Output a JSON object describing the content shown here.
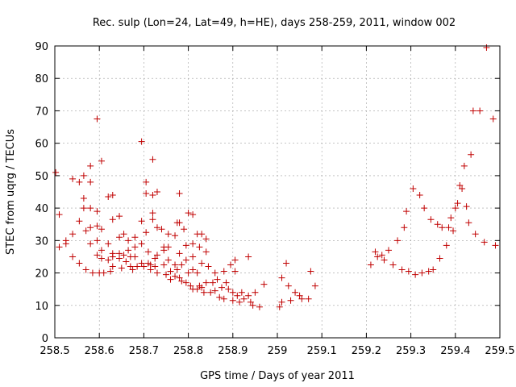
{
  "chart_data": {
    "type": "scatter",
    "title": "Rec. sulp (Lon=24, Lat=49, h=HE), days 258-259, 2011, window 002",
    "xlabel": "GPS time / Days of year 2011",
    "ylabel": "STEC from uqrg / TECUs",
    "xlim": [
      258.5,
      259.5
    ],
    "ylim": [
      0,
      90
    ],
    "xticks": [
      258.5,
      258.6,
      258.7,
      258.8,
      258.9,
      259,
      259.1,
      259.2,
      259.3,
      259.4,
      259.5
    ],
    "xtick_labels": [
      "258.5",
      "258.6",
      "258.7",
      "258.8",
      "258.9",
      "259",
      "259.1",
      "259.2",
      "259.3",
      "259.4",
      "259.5"
    ],
    "yticks": [
      0,
      10,
      20,
      30,
      40,
      50,
      60,
      70,
      80,
      90
    ],
    "ytick_labels": [
      "0",
      "10",
      "20",
      "30",
      "40",
      "50",
      "60",
      "70",
      "80",
      "90"
    ],
    "grid": true,
    "marker": "plus",
    "color": "#c00000",
    "points": [
      [
        258.502,
        51
      ],
      [
        258.51,
        38
      ],
      [
        258.51,
        28
      ],
      [
        258.525,
        30
      ],
      [
        258.525,
        29
      ],
      [
        258.54,
        49
      ],
      [
        258.54,
        32
      ],
      [
        258.54,
        25
      ],
      [
        258.555,
        48
      ],
      [
        258.555,
        36
      ],
      [
        258.555,
        23
      ],
      [
        258.565,
        50
      ],
      [
        258.565,
        43
      ],
      [
        258.565,
        40
      ],
      [
        258.57,
        33
      ],
      [
        258.57,
        21
      ],
      [
        258.58,
        53
      ],
      [
        258.58,
        48
      ],
      [
        258.58,
        40
      ],
      [
        258.58,
        34
      ],
      [
        258.58,
        29
      ],
      [
        258.585,
        20
      ],
      [
        258.595,
        67.5
      ],
      [
        258.595,
        39
      ],
      [
        258.595,
        34.5
      ],
      [
        258.595,
        30
      ],
      [
        258.595,
        25.5
      ],
      [
        258.6,
        20
      ],
      [
        258.605,
        54.5
      ],
      [
        258.605,
        33.5
      ],
      [
        258.605,
        27
      ],
      [
        258.605,
        24.5
      ],
      [
        258.61,
        20
      ],
      [
        258.62,
        43.5
      ],
      [
        258.62,
        29
      ],
      [
        258.62,
        24
      ],
      [
        258.625,
        20.5
      ],
      [
        258.63,
        44
      ],
      [
        258.63,
        36.5
      ],
      [
        258.63,
        26
      ],
      [
        258.63,
        25
      ],
      [
        258.63,
        22
      ],
      [
        258.645,
        37.5
      ],
      [
        258.645,
        31
      ],
      [
        258.645,
        26
      ],
      [
        258.645,
        24.5
      ],
      [
        258.65,
        21.5
      ],
      [
        258.655,
        32
      ],
      [
        258.655,
        25.5
      ],
      [
        258.66,
        23.5
      ],
      [
        258.665,
        30
      ],
      [
        258.665,
        27
      ],
      [
        258.67,
        25
      ],
      [
        258.67,
        22
      ],
      [
        258.675,
        21
      ],
      [
        258.68,
        31
      ],
      [
        258.68,
        28
      ],
      [
        258.68,
        25
      ],
      [
        258.685,
        22
      ],
      [
        258.695,
        60.5
      ],
      [
        258.695,
        36
      ],
      [
        258.695,
        29
      ],
      [
        258.695,
        23
      ],
      [
        258.7,
        22
      ],
      [
        258.705,
        48
      ],
      [
        258.705,
        44.5
      ],
      [
        258.705,
        32.5
      ],
      [
        258.71,
        26.5
      ],
      [
        258.71,
        23
      ],
      [
        258.715,
        22.5
      ],
      [
        258.715,
        21
      ],
      [
        258.72,
        55
      ],
      [
        258.72,
        44
      ],
      [
        258.72,
        38.5
      ],
      [
        258.72,
        36.5
      ],
      [
        258.725,
        24.5
      ],
      [
        258.725,
        22
      ],
      [
        258.73,
        45
      ],
      [
        258.73,
        34
      ],
      [
        258.73,
        25.5
      ],
      [
        258.73,
        20
      ],
      [
        258.74,
        33.5
      ],
      [
        258.745,
        28
      ],
      [
        258.745,
        27
      ],
      [
        258.745,
        22.5
      ],
      [
        258.75,
        19.5
      ],
      [
        258.755,
        32
      ],
      [
        258.755,
        28
      ],
      [
        258.755,
        24
      ],
      [
        258.76,
        20.5
      ],
      [
        258.76,
        18
      ],
      [
        258.77,
        31.5
      ],
      [
        258.77,
        22.5
      ],
      [
        258.77,
        19
      ],
      [
        258.775,
        35.5
      ],
      [
        258.775,
        21
      ],
      [
        258.78,
        44.5
      ],
      [
        258.78,
        35.5
      ],
      [
        258.78,
        26
      ],
      [
        258.78,
        18.5
      ],
      [
        258.785,
        22.5
      ],
      [
        258.785,
        17.5
      ],
      [
        258.79,
        33.5
      ],
      [
        258.795,
        28.5
      ],
      [
        258.795,
        24
      ],
      [
        258.795,
        17
      ],
      [
        258.8,
        38.5
      ],
      [
        258.8,
        20
      ],
      [
        258.805,
        16
      ],
      [
        258.81,
        38
      ],
      [
        258.81,
        29
      ],
      [
        258.81,
        25
      ],
      [
        258.81,
        21
      ],
      [
        258.81,
        15
      ],
      [
        258.82,
        32
      ],
      [
        258.82,
        20
      ],
      [
        258.82,
        15
      ],
      [
        258.825,
        28
      ],
      [
        258.825,
        16
      ],
      [
        258.83,
        32
      ],
      [
        258.83,
        23
      ],
      [
        258.83,
        15.5
      ],
      [
        258.835,
        14
      ],
      [
        258.84,
        30.5
      ],
      [
        258.84,
        26.5
      ],
      [
        258.84,
        17
      ],
      [
        258.845,
        22
      ],
      [
        258.85,
        14
      ],
      [
        258.855,
        17
      ],
      [
        258.86,
        20
      ],
      [
        258.86,
        14.5
      ],
      [
        258.865,
        18
      ],
      [
        258.87,
        12.5
      ],
      [
        258.875,
        15.5
      ],
      [
        258.88,
        20.5
      ],
      [
        258.88,
        12
      ],
      [
        258.885,
        17
      ],
      [
        258.89,
        15
      ],
      [
        258.895,
        22.5
      ],
      [
        258.9,
        11.5
      ],
      [
        258.9,
        14
      ],
      [
        258.905,
        24
      ],
      [
        258.905,
        20.5
      ],
      [
        258.91,
        13
      ],
      [
        258.915,
        11
      ],
      [
        258.92,
        14
      ],
      [
        258.925,
        12
      ],
      [
        258.935,
        25
      ],
      [
        258.935,
        13
      ],
      [
        258.94,
        11
      ],
      [
        258.945,
        10
      ],
      [
        258.95,
        14
      ],
      [
        258.96,
        9.5
      ],
      [
        258.97,
        16.5
      ],
      [
        259.005,
        9.5
      ],
      [
        259.01,
        18.5
      ],
      [
        259.01,
        11
      ],
      [
        259.02,
        23
      ],
      [
        259.025,
        16
      ],
      [
        259.03,
        11.5
      ],
      [
        259.04,
        14
      ],
      [
        259.05,
        13
      ],
      [
        259.055,
        12
      ],
      [
        259.07,
        12
      ],
      [
        259.075,
        20.5
      ],
      [
        259.085,
        16
      ],
      [
        259.21,
        22.5
      ],
      [
        259.22,
        26.5
      ],
      [
        259.225,
        25
      ],
      [
        259.235,
        25.5
      ],
      [
        259.24,
        24
      ],
      [
        259.25,
        27
      ],
      [
        259.26,
        22.5
      ],
      [
        259.27,
        30
      ],
      [
        259.28,
        21
      ],
      [
        259.285,
        34
      ],
      [
        259.29,
        39
      ],
      [
        259.295,
        20.5
      ],
      [
        259.305,
        46
      ],
      [
        259.31,
        19.5
      ],
      [
        259.32,
        44
      ],
      [
        259.325,
        20
      ],
      [
        259.33,
        40
      ],
      [
        259.34,
        20.5
      ],
      [
        259.345,
        36.5
      ],
      [
        259.35,
        21
      ],
      [
        259.36,
        35
      ],
      [
        259.365,
        24.5
      ],
      [
        259.37,
        34
      ],
      [
        259.38,
        28.5
      ],
      [
        259.385,
        34
      ],
      [
        259.39,
        37
      ],
      [
        259.395,
        33
      ],
      [
        259.4,
        40
      ],
      [
        259.405,
        41.5
      ],
      [
        259.41,
        47
      ],
      [
        259.415,
        46
      ],
      [
        259.42,
        53
      ],
      [
        259.425,
        40.5
      ],
      [
        259.43,
        35.5
      ],
      [
        259.435,
        56.5
      ],
      [
        259.44,
        70
      ],
      [
        259.445,
        32
      ],
      [
        259.455,
        70
      ],
      [
        259.465,
        29.5
      ],
      [
        259.47,
        89.5
      ],
      [
        259.485,
        67.5
      ],
      [
        259.49,
        28.5
      ]
    ]
  }
}
